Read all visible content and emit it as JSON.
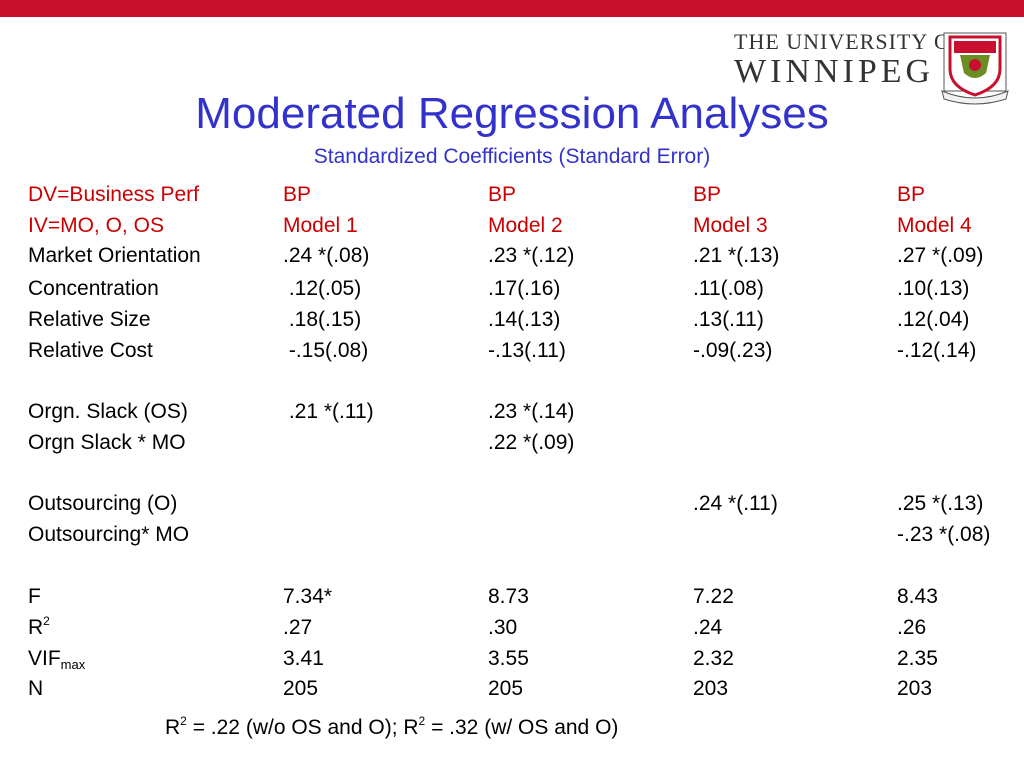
{
  "header": {
    "logo_line1": "THE UNIVERSITY OF",
    "logo_line2": "WINNIPEG",
    "title": "Moderated Regression Analyses",
    "subtitle": "Standardized Coefficients (Standard Error)",
    "accent_color": "#c8102e",
    "title_color": "#3333cc"
  },
  "table": {
    "header_rows": [
      [
        "DV=Business Perf",
        "BP",
        "BP",
        "BP",
        "BP"
      ],
      [
        "IV=MO, O, OS",
        "Model 1",
        "Model 2",
        "Model 3",
        "Model 4"
      ]
    ],
    "rows": [
      [
        "Market Orientation",
        ".24 *(.08)",
        ".23 *(.12)",
        ".21 *(.13)",
        ".27 *(.09)"
      ],
      [
        "Concentration",
        " .12(.05)",
        ".17(.16)",
        ".11(.08)",
        ".10(.13)"
      ],
      [
        "Relative Size",
        " .18(.15)",
        ".14(.13)",
        ".13(.11)",
        ".12(.04)"
      ],
      [
        "Relative Cost",
        " -.15(.08)",
        "-.13(.11)",
        "-.09(.23)",
        "-.12(.14)"
      ],
      [
        "Orgn. Slack (OS)",
        " .21 *(.11)",
        ".23 *(.14)",
        "",
        ""
      ],
      [
        "Orgn Slack * MO",
        "",
        ".22 *(.09)",
        "",
        ""
      ],
      [
        "Outsourcing (O)",
        "",
        "",
        ".24 *(.11)",
        ".25 *(.13)"
      ],
      [
        "Outsourcing* MO",
        "",
        "",
        "",
        "-.23 *(.08)"
      ],
      [
        "F",
        "7.34*",
        "8.73",
        "7.22",
        "8.43"
      ],
      [
        "R",
        ".27",
        ".30",
        ".24",
        ".26"
      ],
      [
        "VIF",
        "3.41",
        "3.55",
        "2.32",
        "2.35"
      ],
      [
        "N",
        "205",
        "205",
        "203",
        "203"
      ]
    ],
    "r2_sup": "2",
    "vif_sub": "max"
  },
  "footnote": {
    "part1": "R",
    "sup1": "2",
    "part2": " = .22 (w/o OS and O); R",
    "sup2": "2",
    "part3": " = .32 (w/ OS and O)"
  }
}
